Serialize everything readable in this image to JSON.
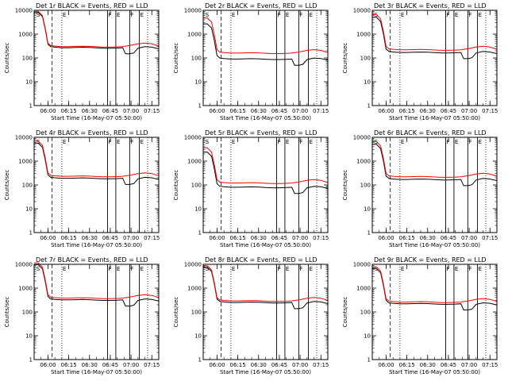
{
  "chart_data": {
    "type": "line",
    "yscale": "log",
    "ylim": [
      1,
      10000
    ],
    "ylabel": "Counts/sec",
    "xlabel": "Start Time (16-May-07 05:50:00)",
    "x_range_minutes": [
      0,
      90
    ],
    "x_ticks": [
      {
        "label": "06:00",
        "minute": 10
      },
      {
        "label": "06:15",
        "minute": 25
      },
      {
        "label": "06:30",
        "minute": 40
      },
      {
        "label": "06:45",
        "minute": 55
      },
      {
        "label": "07:00",
        "minute": 70
      },
      {
        "label": "07:15",
        "minute": 85
      }
    ],
    "y_ticks": [
      {
        "label": "1",
        "value": 1
      },
      {
        "label": "10",
        "value": 10
      },
      {
        "label": "100",
        "value": 100
      },
      {
        "label": "1000",
        "value": 1000
      },
      {
        "label": "10000",
        "value": 10000
      }
    ],
    "series_legend": {
      "black": "Events",
      "red": "LLD"
    },
    "colors": {
      "events": "#000000",
      "lld": "#ff0000"
    },
    "panel_markers": [
      "S",
      "E",
      "F",
      "E",
      "F",
      "E"
    ],
    "panels": [
      {
        "title": "Det 1r  BLACK = Events, RED = LLD",
        "red_base": 300,
        "black_base": 270,
        "tail": 380
      },
      {
        "title": "Det 2r  BLACK = Events, RED = LLD",
        "red_base": 160,
        "black_base": 90,
        "tail": 220
      },
      {
        "title": "Det 3r  BLACK = Events, RED = LLD",
        "red_base": 220,
        "black_base": 170,
        "tail": 260
      },
      {
        "title": "Det 4r  BLACK = Events, RED = LLD",
        "red_base": 230,
        "black_base": 190,
        "tail": 300
      },
      {
        "title": "Det 5r  BLACK = Events, RED = LLD",
        "red_base": 120,
        "black_base": 80,
        "tail": 200
      },
      {
        "title": "Det 6r  BLACK = Events, RED = LLD",
        "red_base": 220,
        "black_base": 170,
        "tail": 270
      },
      {
        "title": "Det 7r  BLACK = Events, RED = LLD",
        "red_base": 380,
        "black_base": 320,
        "tail": 420
      },
      {
        "title": "Det 8r  BLACK = Events, RED = LLD",
        "red_base": 290,
        "black_base": 250,
        "tail": 380
      },
      {
        "title": "Det 9r  BLACK = Events, RED = LLD",
        "red_base": 260,
        "black_base": 220,
        "tail": 280
      }
    ],
    "profile": {
      "minutes": [
        0,
        3,
        6,
        8,
        10,
        12,
        15,
        20,
        25,
        30,
        35,
        40,
        45,
        50,
        55,
        60,
        64,
        66,
        69,
        72,
        75,
        80,
        85,
        88,
        90
      ],
      "red_factor": [
        30,
        30,
        20,
        6,
        1.4,
        1.1,
        1.05,
        1.0,
        1.0,
        1.02,
        1.04,
        1.02,
        0.98,
        0.95,
        0.95,
        0.97,
        1.0,
        1.05,
        1.1,
        1.2,
        1.3,
        1.4,
        1.3,
        1.15,
        1.05
      ],
      "black_factor": [
        30,
        30,
        20,
        6,
        1.4,
        1.1,
        1.05,
        1.0,
        1.0,
        1.02,
        1.04,
        1.02,
        0.98,
        0.95,
        0.95,
        0.97,
        1.0,
        0.55,
        0.55,
        0.6,
        0.95,
        1.1,
        1.05,
        0.95,
        0.9
      ]
    },
    "vertical_markers_minutes": {
      "dashed": 13,
      "dotted": [
        20,
        82
      ],
      "solid": [
        53,
        59,
        69,
        76
      ]
    }
  }
}
